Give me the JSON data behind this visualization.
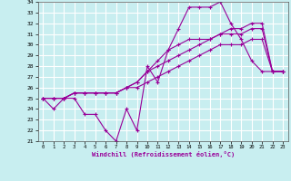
{
  "xlabel": "Windchill (Refroidissement éolien,°C)",
  "xlim": [
    -0.5,
    23.5
  ],
  "ylim": [
    21,
    34
  ],
  "yticks": [
    21,
    22,
    23,
    24,
    25,
    26,
    27,
    28,
    29,
    30,
    31,
    32,
    33,
    34
  ],
  "xticks": [
    0,
    1,
    2,
    3,
    4,
    5,
    6,
    7,
    8,
    9,
    10,
    11,
    12,
    13,
    14,
    15,
    16,
    17,
    18,
    19,
    20,
    21,
    22,
    23
  ],
  "background_color": "#c8eef0",
  "grid_color": "#ffffff",
  "line_color": "#990099",
  "line_width": 0.8,
  "marker": "+",
  "marker_size": 3,
  "marker_edge_width": 0.8,
  "series": [
    [
      25.0,
      24.0,
      25.0,
      25.0,
      23.5,
      23.5,
      22.0,
      21.0,
      24.0,
      22.0,
      28.0,
      26.5,
      29.5,
      31.5,
      33.5,
      33.5,
      33.5,
      34.0,
      32.0,
      30.5,
      28.5,
      27.5,
      27.5,
      27.5
    ],
    [
      25.0,
      25.0,
      25.0,
      25.5,
      25.5,
      25.5,
      25.5,
      25.5,
      26.0,
      26.0,
      26.5,
      27.0,
      27.5,
      28.0,
      28.5,
      29.0,
      29.5,
      30.0,
      30.0,
      30.0,
      30.5,
      30.5,
      27.5,
      27.5
    ],
    [
      25.0,
      25.0,
      25.0,
      25.5,
      25.5,
      25.5,
      25.5,
      25.5,
      26.0,
      26.5,
      27.5,
      28.0,
      28.5,
      29.0,
      29.5,
      30.0,
      30.5,
      31.0,
      31.0,
      31.0,
      31.5,
      31.5,
      27.5,
      27.5
    ],
    [
      25.0,
      25.0,
      25.0,
      25.5,
      25.5,
      25.5,
      25.5,
      25.5,
      26.0,
      26.5,
      27.5,
      28.5,
      29.5,
      30.0,
      30.5,
      30.5,
      30.5,
      31.0,
      31.5,
      31.5,
      32.0,
      32.0,
      27.5,
      27.5
    ]
  ]
}
